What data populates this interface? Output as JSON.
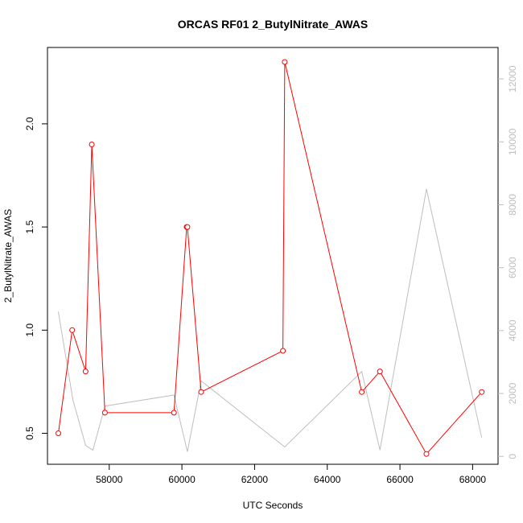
{
  "chart_data": {
    "type": "line",
    "title": "ORCAS RF01 2_ButylNitrate_AWAS",
    "xlabel": "UTC Seconds",
    "ylabel": "2_ButylNitrate_AWAS",
    "xlim": [
      56300,
      68700
    ],
    "ylim": [
      0.35,
      2.37
    ],
    "y2lim": [
      -250,
      13000
    ],
    "x_ticks": [
      58000,
      60000,
      62000,
      64000,
      66000,
      68000
    ],
    "y_ticks": [
      0.5,
      1.0,
      1.5,
      2.0
    ],
    "y2_ticks": [
      0,
      2000,
      4000,
      6000,
      8000,
      10000,
      12000
    ],
    "grid": false,
    "series": [
      {
        "axis": "left",
        "style": "line-points",
        "color": "#ff0000",
        "x": [
          56600,
          56980,
          57350,
          57520,
          57880,
          59780,
          60130,
          60150,
          60530,
          62780,
          62830,
          64950,
          65450,
          66730,
          68250
        ],
        "y": [
          0.5,
          1.0,
          0.8,
          1.9,
          0.6,
          0.6,
          1.5,
          1.5,
          0.7,
          0.9,
          2.3,
          0.7,
          0.8,
          0.4,
          0.7
        ]
      },
      {
        "axis": "right",
        "style": "line",
        "color": "#bebebe",
        "x": [
          56600,
          57000,
          57350,
          57550,
          57880,
          59780,
          60150,
          60530,
          62830,
          64950,
          65450,
          66730,
          68250
        ],
        "y": [
          4600,
          1800,
          350,
          200,
          1600,
          1950,
          150,
          2400,
          300,
          2700,
          200,
          8500,
          600
        ]
      }
    ]
  }
}
